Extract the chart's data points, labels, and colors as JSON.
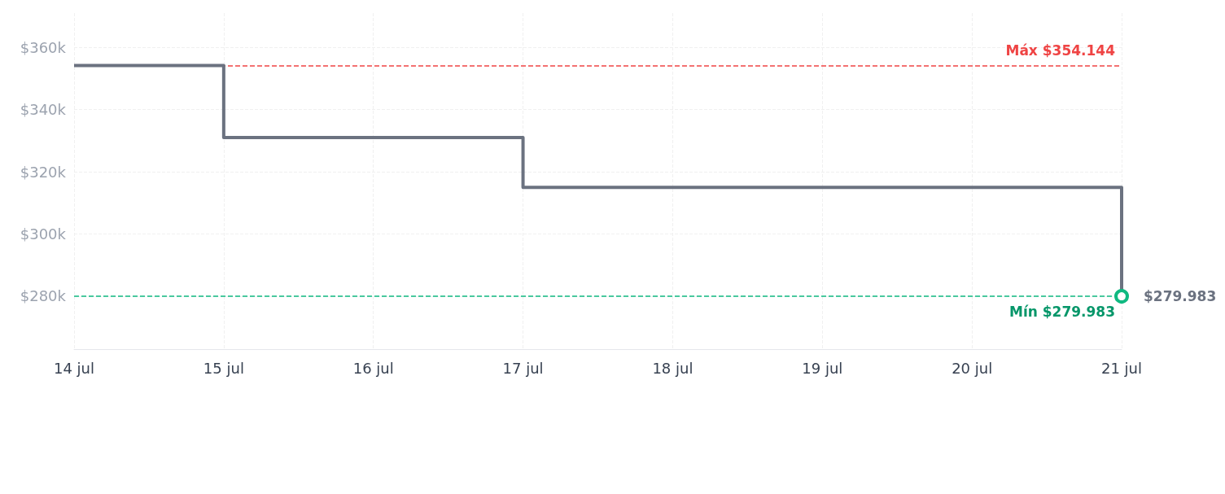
{
  "chart_data": {
    "type": "step",
    "x": [
      "--07-14",
      "--07-15",
      "--07-17",
      "--07-21"
    ],
    "series": [
      {
        "color": "#6b7280",
        "values": [
          354144,
          331000,
          315000,
          279983
        ],
        "value_labels": [
          null,
          null,
          null,
          "$279.983"
        ]
      }
    ],
    "xlim": [
      "--07-14",
      "--07-21"
    ],
    "xticks": [
      {
        "value": "--07-14",
        "label": "14 jul"
      },
      {
        "value": "--07-15",
        "label": "15 jul"
      },
      {
        "value": "--07-16",
        "label": "16 jul"
      },
      {
        "value": "--07-17",
        "label": "17 jul"
      },
      {
        "value": "--07-18",
        "label": "18 jul"
      },
      {
        "value": "--07-19",
        "label": "19 jul"
      },
      {
        "value": "--07-20",
        "label": "20 jul"
      },
      {
        "value": "--07-21",
        "label": "21 jul"
      }
    ],
    "ylim": [
      263000,
      371000
    ],
    "yticks": [
      {
        "value": 280000,
        "label": "$280k"
      },
      {
        "value": 300000,
        "label": "$300k"
      },
      {
        "value": 320000,
        "label": "$320k"
      },
      {
        "value": 340000,
        "label": "$340k"
      },
      {
        "value": 360000,
        "label": "$360k"
      }
    ],
    "ref_lines": [
      {
        "axis": "y",
        "value": 354144,
        "label": "Máx $354.144",
        "color": "#ef4444",
        "line_style": "dashed"
      },
      {
        "axis": "y",
        "value": 279983,
        "label": "Mín $279.983",
        "color": "#10b981",
        "line_style": "dashed"
      }
    ],
    "grid": true,
    "line_style": "solid"
  }
}
